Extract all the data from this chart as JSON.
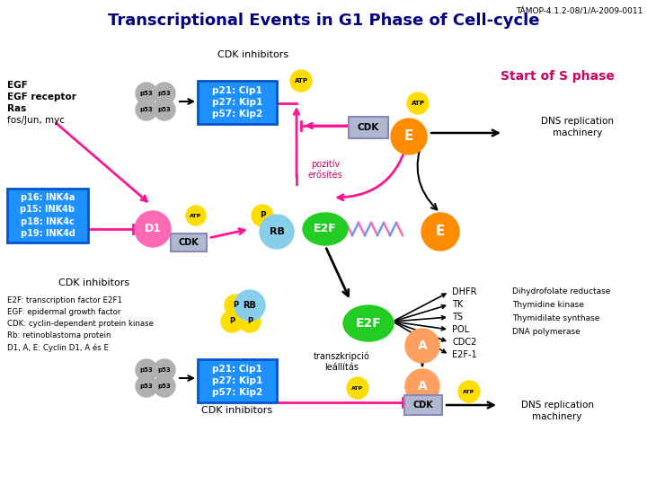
{
  "title": "Transcriptional Events in G1 Phase of Cell-cycle",
  "subtitle": "TÁMOP-4.1.2-08/1/A-2009-0011",
  "bg_color": "#ffffff",
  "title_color": "#000080",
  "top_left_labels": [
    "EGF",
    "EGF receptor",
    "Ras",
    "fos/Jun, myc"
  ],
  "bottom_left_labels": [
    "E2F: transcription factor E2F1",
    "EGF: epidermal growth factor",
    "CDK: cyclin-dependent protein kinase",
    "Rb: retinoblastoma protein",
    "D1, A, E: Cyclin D1, A és E"
  ],
  "blue_box1_text": "p21: Cip1\np27: Kip1\np57: Kip2",
  "blue_box2_text": "p16: INK4a\np15: INK4b\np18: INK4c\np19: INK4d",
  "blue_box3_text": "p21: Cip1\np27: Kip1\np57: Kip2",
  "cdk_top_label": "CDK inhibitors",
  "cdk_bottom_label": "CDK inhibitors",
  "cdk_mid_label": "CDK inhibitors",
  "start_s_phase": "Start of S phase",
  "dns_rep1": "DNS replication\nmachinery",
  "dns_rep2": "DNS replication\nmachinery",
  "pozitiv": "pozitív\nerősítés",
  "transzkripció": "transzkripció\nleállítás",
  "dhfr_items": [
    "DHFR",
    "TK",
    "TS",
    "POL",
    "CDC2",
    "E2F-1"
  ],
  "dhfr_labels": [
    "Dihydrofolate reductase",
    "Thymidine kinase",
    "Thymidilate synthase",
    "DNA polymerase"
  ],
  "blue_color": "#1e90ff",
  "blue_edge": "#0055cc",
  "cdk_box_color": "#b0b8d0",
  "cdk_edge": "#8888bb",
  "p53_color": "#b0b0b0",
  "pink_color": "#ff1493",
  "d1_color": "#ff69b4",
  "rb_color": "#87ceeb",
  "e2f_color": "#22cc22",
  "e_color": "#ff8c00",
  "a_color": "#ffa060",
  "p_color": "#ffdd00",
  "atp_color": "#ffdd00"
}
